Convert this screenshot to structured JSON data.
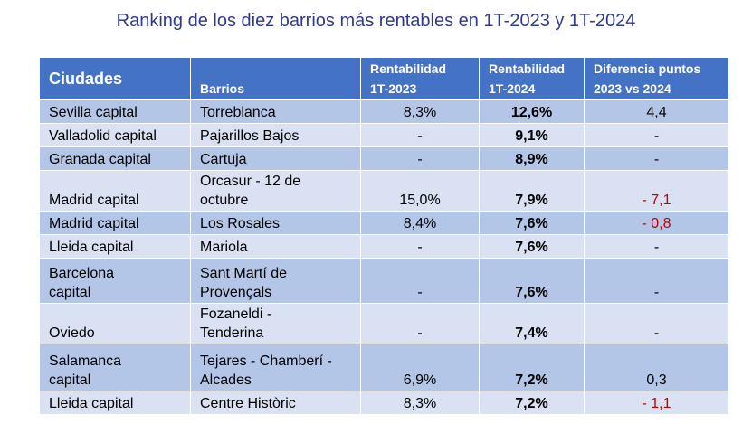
{
  "title": "Ranking de los diez barrios más rentables en 1T-2023 y 1T-2024",
  "table": {
    "header": [
      "Ciudades",
      "Barrios",
      "Rentabilidad\n1T-2023",
      "Rentabilidad\n1T-2024",
      "Diferencia puntos\n2023 vs 2024"
    ],
    "rows": [
      [
        "Sevilla capital",
        "Torreblanca",
        "8,3%",
        "12,6%",
        "4,4"
      ],
      [
        "Valladolid capital",
        "Pajarillos Bajos",
        "-",
        "9,1%",
        "-"
      ],
      [
        "Granada capital",
        "Cartuja",
        "-",
        "8,9%",
        "-"
      ],
      [
        "Madrid capital",
        "Orcasur - 12 de\noctubre",
        "15,0%",
        "7,9%",
        "- 7,1"
      ],
      [
        "Madrid capital",
        "Los Rosales",
        "8,4%",
        "7,6%",
        "- 0,8"
      ],
      [
        "Lleida capital",
        "Mariola",
        "-",
        "7,6%",
        "-"
      ],
      [
        "Barcelona\ncapital",
        "Sant Martí de\nProvençals",
        "-",
        "7,6%",
        "-"
      ],
      [
        "Oviedo",
        "Fozaneldi -\nTenderina",
        "-",
        "7,4%",
        "-"
      ],
      [
        "Salamanca\ncapital",
        "Tejares - Chamberí -\nAlcades",
        "6,9%",
        "7,2%",
        "0,3"
      ],
      [
        "Lleida capital",
        "Centre Històric",
        "8,3%",
        "7,2%",
        "- 1,1"
      ]
    ]
  }
}
